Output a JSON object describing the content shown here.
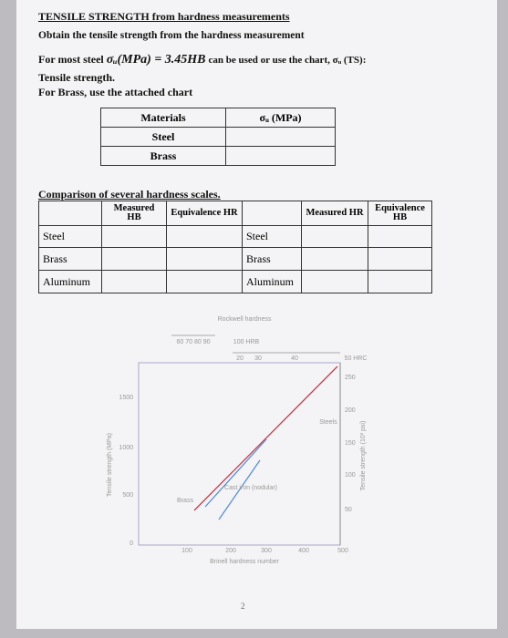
{
  "header": {
    "title": "TENSILE STRENGTH from hardness measurements",
    "instruction": "Obtain the tensile strength from the hardness measurement"
  },
  "formula_line": {
    "before": "For most steel",
    "formula": "σᵤ(MPa) = 3.45HB",
    "after": "can be used or use the chart, σᵤ (TS):",
    "note": "Tensile strength."
  },
  "brass_note": "For Brass, use the attached chart",
  "table1": {
    "headers": [
      "Materials",
      "σᵤ (MPa)"
    ],
    "rows": [
      "Steel",
      "Brass"
    ]
  },
  "comparison": {
    "title": "Comparison of several hardness scales.",
    "left_headers": [
      "Measured HB",
      "Equivalence HR"
    ],
    "right_headers": [
      "Measured HR",
      "Equivalence HB"
    ],
    "left_rows": [
      "Steel",
      "Brass",
      "Aluminum"
    ],
    "right_rows": [
      "Steel",
      "Brass",
      "Aluminum"
    ]
  },
  "figure": {
    "top_title": "Rockwell hardness",
    "hrb_ticks": "60 70 80 90",
    "hrb_label": "100 HRB",
    "hrc_ticks": [
      20,
      30,
      40
    ],
    "hrc_label": "50 HRC",
    "left_axis_label": "Tensile strength (MPa)",
    "left_ticks": [
      1500,
      1000,
      500,
      0
    ],
    "right_axis_label": "Tensile strength (10³ psi)",
    "right_ticks": [
      250,
      200,
      150,
      100,
      50
    ],
    "bottom_ticks": [
      100,
      200,
      300,
      400,
      500
    ],
    "bottom_label": "Brinell hardness number",
    "curve_labels": [
      "Steels",
      "Brass",
      "Cast iron (nodular)"
    ]
  },
  "page_number": 2
}
